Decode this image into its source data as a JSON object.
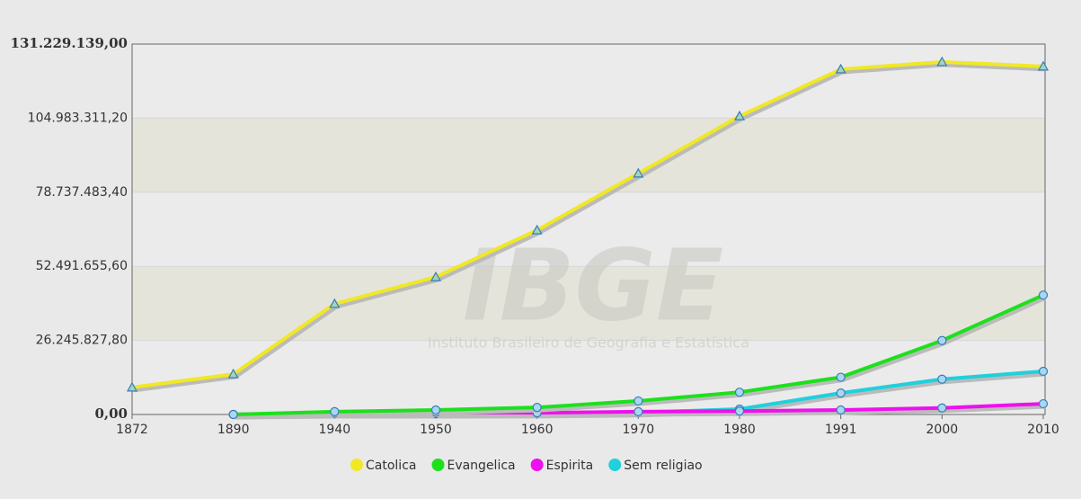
{
  "chart_data": {
    "type": "line",
    "categories": [
      "1872",
      "1890",
      "1940",
      "1950",
      "1960",
      "1970",
      "1980",
      "1991",
      "2000",
      "2010"
    ],
    "series": [
      {
        "name": "Catolica",
        "color": "#f0e826",
        "marker": "triangle",
        "values": [
          9600000,
          14300000,
          39200000,
          48700000,
          65300000,
          85400000,
          105700000,
          122300000,
          124900000,
          123300000
        ]
      },
      {
        "name": "Evangelica",
        "color": "#1de01d",
        "marker": "circle",
        "values": [
          null,
          0,
          1000000,
          1600000,
          2500000,
          4800000,
          7900000,
          13200000,
          26200000,
          42300000
        ]
      },
      {
        "name": "Espirita",
        "color": "#ee10ee",
        "marker": "circle",
        "values": [
          null,
          0,
          500000,
          800000,
          600000,
          1000000,
          1200000,
          1600000,
          2300000,
          3800000
        ]
      },
      {
        "name": "Sem religiao",
        "color": "#20d0dc",
        "marker": "circle",
        "values": [
          null,
          0,
          300000,
          300000,
          350000,
          700000,
          1900000,
          7600000,
          12500000,
          15300000
        ]
      }
    ],
    "ylim": [
      0,
      131229139
    ],
    "yticks": [
      {
        "value": 0,
        "label": "0,00"
      },
      {
        "value": 26245827.8,
        "label": "26.245.827,80"
      },
      {
        "value": 52491655.6,
        "label": "52.491.655,60"
      },
      {
        "value": 78737483.4,
        "label": "78.737.483,40"
      },
      {
        "value": 104983311.2,
        "label": "104.983.311,20"
      },
      {
        "value": 131229139,
        "label": "131.229.139,00"
      }
    ],
    "grid": true,
    "legend": "bottom",
    "watermark": {
      "title": "IBGE",
      "subtitle": "Instituto Brasileiro de Geografia e Estatística"
    }
  }
}
